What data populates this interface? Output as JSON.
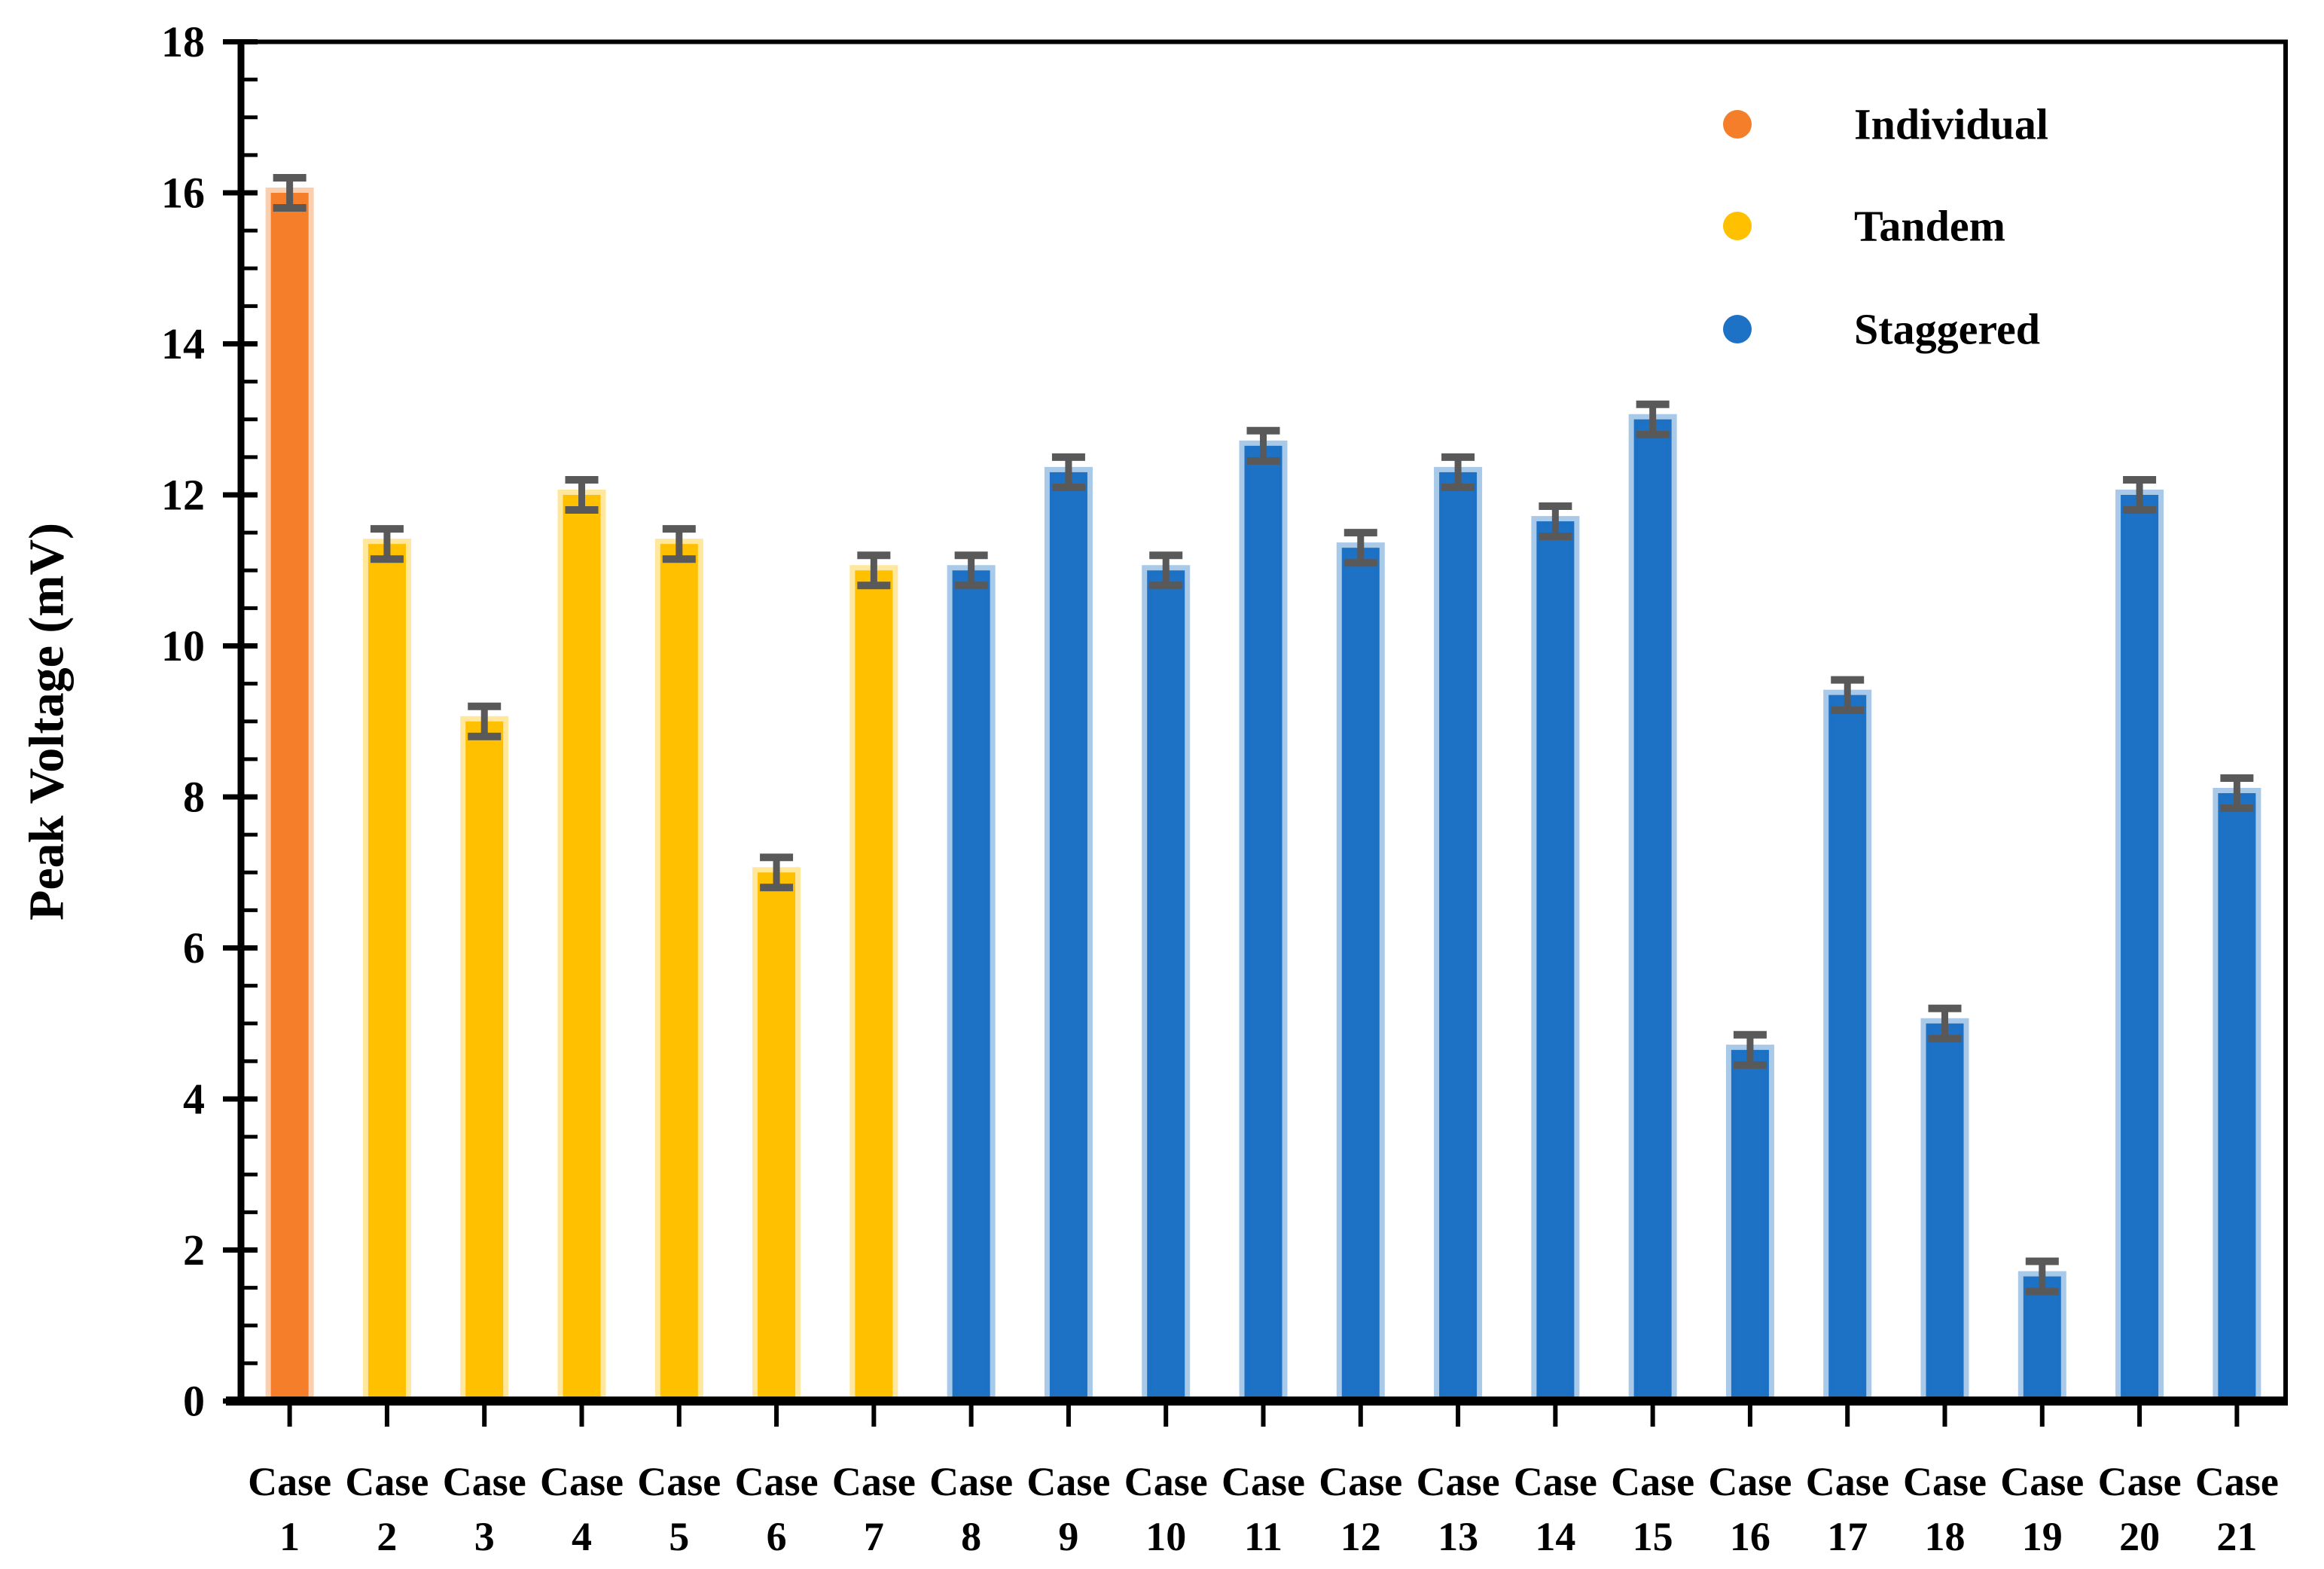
{
  "chart_data": {
    "type": "bar",
    "title": "",
    "xlabel": "",
    "ylabel": "Peak Voltage (mV)",
    "ylim": [
      0,
      18
    ],
    "ytick_step": 2,
    "yminor_step": 0.5,
    "grid": false,
    "legend_position": "top-right",
    "legend": [
      {
        "label": "Individual",
        "color": "#F57E2A"
      },
      {
        "label": "Tandem",
        "color": "#FFC000"
      },
      {
        "label": "Staggered",
        "color": "#1E72C6"
      }
    ],
    "error_bar_color": "#595959",
    "x_label_word": "Case",
    "categories": [
      "Case 1",
      "Case 2",
      "Case 3",
      "Case 4",
      "Case 5",
      "Case 6",
      "Case 7",
      "Case 8",
      "Case 9",
      "Case 10",
      "Case 11",
      "Case 12",
      "Case 13",
      "Case 14",
      "Case 15",
      "Case 16",
      "Case 17",
      "Case 18",
      "Case 19",
      "Case 20",
      "Case 21"
    ],
    "points": [
      {
        "case_word": "Case",
        "case_num": "1",
        "value": 16.0,
        "error": 0.2,
        "series": "Individual"
      },
      {
        "case_word": "Case",
        "case_num": "2",
        "value": 11.35,
        "error": 0.2,
        "series": "Tandem"
      },
      {
        "case_word": "Case",
        "case_num": "3",
        "value": 9.0,
        "error": 0.2,
        "series": "Tandem"
      },
      {
        "case_word": "Case",
        "case_num": "4",
        "value": 12.0,
        "error": 0.2,
        "series": "Tandem"
      },
      {
        "case_word": "Case",
        "case_num": "5",
        "value": 11.35,
        "error": 0.2,
        "series": "Tandem"
      },
      {
        "case_word": "Case",
        "case_num": "6",
        "value": 7.0,
        "error": 0.2,
        "series": "Tandem"
      },
      {
        "case_word": "Case",
        "case_num": "7",
        "value": 11.0,
        "error": 0.2,
        "series": "Tandem"
      },
      {
        "case_word": "Case",
        "case_num": "8",
        "value": 11.0,
        "error": 0.2,
        "series": "Staggered"
      },
      {
        "case_word": "Case",
        "case_num": "9",
        "value": 12.3,
        "error": 0.2,
        "series": "Staggered"
      },
      {
        "case_word": "Case",
        "case_num": "10",
        "value": 11.0,
        "error": 0.2,
        "series": "Staggered"
      },
      {
        "case_word": "Case",
        "case_num": "11",
        "value": 12.65,
        "error": 0.2,
        "series": "Staggered"
      },
      {
        "case_word": "Case",
        "case_num": "12",
        "value": 11.3,
        "error": 0.2,
        "series": "Staggered"
      },
      {
        "case_word": "Case",
        "case_num": "13",
        "value": 12.3,
        "error": 0.2,
        "series": "Staggered"
      },
      {
        "case_word": "Case",
        "case_num": "14",
        "value": 11.65,
        "error": 0.2,
        "series": "Staggered"
      },
      {
        "case_word": "Case",
        "case_num": "15",
        "value": 13.0,
        "error": 0.2,
        "series": "Staggered"
      },
      {
        "case_word": "Case",
        "case_num": "16",
        "value": 4.65,
        "error": 0.2,
        "series": "Staggered"
      },
      {
        "case_word": "Case",
        "case_num": "17",
        "value": 9.35,
        "error": 0.2,
        "series": "Staggered"
      },
      {
        "case_word": "Case",
        "case_num": "18",
        "value": 5.0,
        "error": 0.2,
        "series": "Staggered"
      },
      {
        "case_word": "Case",
        "case_num": "19",
        "value": 1.65,
        "error": 0.2,
        "series": "Staggered"
      },
      {
        "case_word": "Case",
        "case_num": "20",
        "value": 12.0,
        "error": 0.2,
        "series": "Staggered"
      },
      {
        "case_word": "Case",
        "case_num": "21",
        "value": 8.05,
        "error": 0.2,
        "series": "Staggered"
      }
    ],
    "ytick_labels": [
      "0",
      "2",
      "4",
      "6",
      "8",
      "10",
      "12",
      "14",
      "16",
      "18"
    ]
  },
  "colors": {
    "axis": "#000000",
    "text": "#000000",
    "background": "#FFFFFF",
    "error_bar": "#595959"
  }
}
